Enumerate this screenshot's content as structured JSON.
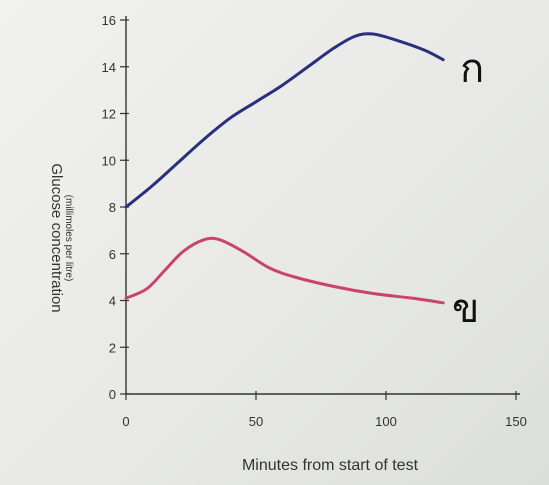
{
  "chart_data": {
    "type": "line",
    "title": "",
    "xlabel": "Minutes from start of test",
    "ylabel": "Glucose concentration",
    "ylabel_sub": "(millimoles per litre)",
    "xlim": [
      0,
      150
    ],
    "ylim": [
      0,
      16
    ],
    "x_ticks": [
      0,
      50,
      100,
      150
    ],
    "y_ticks": [
      0,
      2,
      4,
      6,
      8,
      10,
      12,
      14,
      16
    ],
    "grid": false,
    "series": [
      {
        "name": "ก",
        "color": "#28307f",
        "points": [
          [
            0,
            8.0
          ],
          [
            10,
            8.9
          ],
          [
            20,
            9.9
          ],
          [
            30,
            10.9
          ],
          [
            40,
            11.8
          ],
          [
            50,
            12.5
          ],
          [
            60,
            13.2
          ],
          [
            70,
            14.0
          ],
          [
            80,
            14.8
          ],
          [
            88,
            15.3
          ],
          [
            95,
            15.4
          ],
          [
            105,
            15.1
          ],
          [
            115,
            14.7
          ],
          [
            122,
            14.3
          ]
        ]
      },
      {
        "name": "ข",
        "color": "#c8446c",
        "points": [
          [
            0,
            4.1
          ],
          [
            8,
            4.5
          ],
          [
            15,
            5.3
          ],
          [
            22,
            6.1
          ],
          [
            30,
            6.6
          ],
          [
            36,
            6.6
          ],
          [
            45,
            6.1
          ],
          [
            55,
            5.4
          ],
          [
            65,
            5.0
          ],
          [
            80,
            4.6
          ],
          [
            95,
            4.3
          ],
          [
            110,
            4.1
          ],
          [
            122,
            3.9
          ]
        ]
      }
    ]
  }
}
